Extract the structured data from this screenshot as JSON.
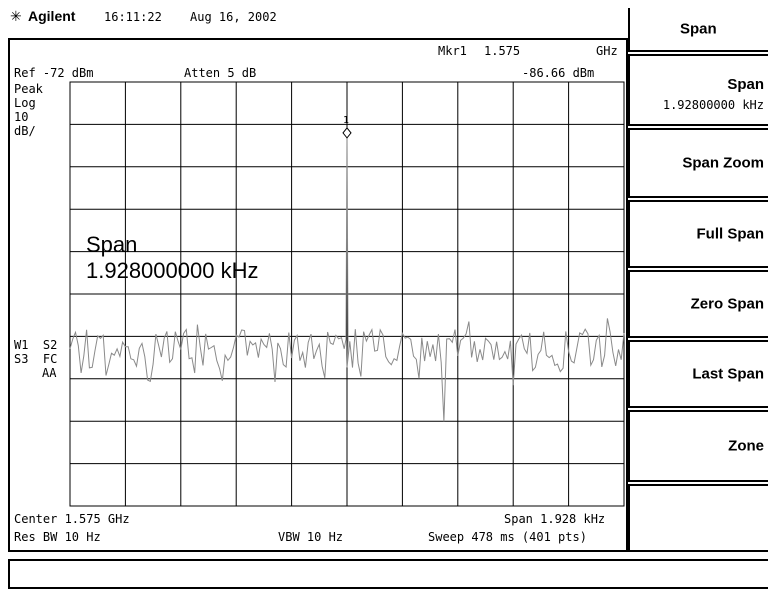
{
  "status": {
    "brand_icon": "agilent-spark-icon",
    "brand": "Agilent",
    "time": "16:11:22",
    "date": "Aug 16, 2002"
  },
  "header": {
    "marker_label": "Mkr1",
    "marker_freq": "1.575",
    "marker_freq_unit": "GHz",
    "ref_level": "Ref -72 dBm",
    "atten": "Atten 5 dB",
    "marker_amp": "-86.66 dBm"
  },
  "left_annotations": {
    "detector": "Peak",
    "scale_type": "Log",
    "scale_value": "10",
    "scale_unit": "dB/",
    "trace_line1": "W1  S2",
    "trace_line2": "S3  FC",
    "trace_line3": "AA"
  },
  "active_function": {
    "label": "Span",
    "value": "1.928000000 kHz"
  },
  "marker": {
    "number": "1"
  },
  "footer": {
    "center": "Center 1.575 GHz",
    "span": "Span 1.928 kHz",
    "res_bw": "Res BW 10 Hz",
    "vbw": "VBW 10 Hz",
    "sweep": "Sweep 478 ms (401 pts)"
  },
  "softkeys": {
    "menu_title": "Span",
    "keys": [
      {
        "label": "Span",
        "sub": "1.92800000 kHz"
      },
      {
        "label": "Span Zoom"
      },
      {
        "label": "Full Span"
      },
      {
        "label": "Zero Span"
      },
      {
        "label": "Last Span"
      },
      {
        "label": "Zone"
      },
      {
        "label": ""
      }
    ]
  },
  "message": ""
}
